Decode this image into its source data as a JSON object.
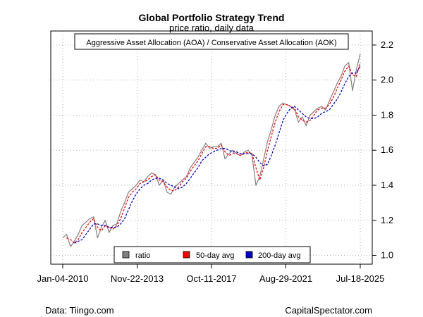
{
  "chart_data": {
    "type": "line",
    "title": "Global Portfolio Strategy Trend",
    "subtitle": "price ratio, daily data",
    "annotation": "Aggressive Asset Allocation (AOA) / Conservative Asset Allocation (AOK)",
    "xlabel": "",
    "ylabel": "",
    "x_ticks": [
      "Jan-04-2010",
      "Nov-22-2013",
      "Oct-11-2017",
      "Aug-29-2021",
      "Jul-18-2025"
    ],
    "x_range": [
      "Jan-04-2010",
      "Jul-18-2025"
    ],
    "y_ticks": [
      1.0,
      1.2,
      1.4,
      1.6,
      1.8,
      2.0,
      2.2
    ],
    "ylim": [
      0.95,
      2.28
    ],
    "y_axis_side": "right",
    "grid": true,
    "legend_position": "bottom-center",
    "x": [
      "Jan-2010",
      "Apr-2010",
      "Jun-2010",
      "Aug-2010",
      "Oct-2010",
      "Dec-2010",
      "Feb-2011",
      "Apr-2011",
      "Jul-2011",
      "Oct-2011",
      "Jan-2012",
      "Apr-2012",
      "Jun-2012",
      "Sep-2012",
      "Dec-2012",
      "Mar-2013",
      "Jun-2013",
      "Sep-2013",
      "Dec-2013",
      "Mar-2014",
      "Jun-2014",
      "Sep-2014",
      "Dec-2014",
      "Mar-2015",
      "Jun-2015",
      "Aug-2015",
      "Oct-2015",
      "Jan-2016",
      "Feb-2016",
      "Apr-2016",
      "Jun-2016",
      "Sep-2016",
      "Dec-2016",
      "Mar-2017",
      "Jun-2017",
      "Sep-2017",
      "Dec-2017",
      "Jan-2018",
      "Feb-2018",
      "Apr-2018",
      "Jul-2018",
      "Sep-2018",
      "Dec-2018",
      "Feb-2019",
      "Apr-2019",
      "Jun-2019",
      "Aug-2019",
      "Oct-2019",
      "Dec-2019",
      "Feb-2020",
      "Mar-2020",
      "Apr-2020",
      "Jun-2020",
      "Sep-2020",
      "Nov-2020",
      "Jan-2021",
      "Mar-2021",
      "Jun-2021",
      "Sep-2021",
      "Dec-2021",
      "Mar-2022",
      "May-2022",
      "Jul-2022",
      "Oct-2022",
      "Dec-2022",
      "Mar-2023",
      "Jun-2023",
      "Sep-2023",
      "Oct-2023",
      "Dec-2023",
      "Mar-2024",
      "Jun-2024",
      "Sep-2024",
      "Dec-2024",
      "Feb-2025",
      "Apr-2025",
      "May-2025",
      "Jul-2025"
    ],
    "series": [
      {
        "name": "ratio",
        "color": "#808080",
        "values": [
          1.1,
          1.12,
          1.05,
          1.08,
          1.12,
          1.17,
          1.19,
          1.21,
          1.22,
          1.1,
          1.16,
          1.2,
          1.13,
          1.17,
          1.18,
          1.25,
          1.3,
          1.36,
          1.38,
          1.4,
          1.43,
          1.42,
          1.45,
          1.47,
          1.46,
          1.4,
          1.43,
          1.36,
          1.35,
          1.39,
          1.41,
          1.43,
          1.45,
          1.5,
          1.53,
          1.56,
          1.6,
          1.64,
          1.61,
          1.62,
          1.62,
          1.64,
          1.55,
          1.58,
          1.6,
          1.58,
          1.57,
          1.59,
          1.6,
          1.57,
          1.4,
          1.45,
          1.55,
          1.65,
          1.72,
          1.8,
          1.85,
          1.87,
          1.86,
          1.85,
          1.83,
          1.76,
          1.79,
          1.74,
          1.8,
          1.82,
          1.84,
          1.85,
          1.83,
          1.88,
          1.93,
          1.98,
          2.02,
          2.08,
          2.1,
          1.94,
          2.06,
          2.15
        ]
      },
      {
        "name": "50-day avg",
        "color": "#ff0000",
        "values": [
          null,
          1.1,
          1.09,
          1.07,
          1.09,
          1.13,
          1.16,
          1.19,
          1.21,
          1.16,
          1.14,
          1.17,
          1.16,
          1.15,
          1.17,
          1.21,
          1.27,
          1.33,
          1.36,
          1.38,
          1.41,
          1.42,
          1.43,
          1.45,
          1.46,
          1.43,
          1.42,
          1.39,
          1.37,
          1.37,
          1.39,
          1.42,
          1.44,
          1.48,
          1.51,
          1.54,
          1.58,
          1.62,
          1.62,
          1.61,
          1.61,
          1.63,
          1.59,
          1.57,
          1.58,
          1.58,
          1.57,
          1.58,
          1.59,
          1.58,
          1.5,
          1.43,
          1.5,
          1.6,
          1.68,
          1.76,
          1.82,
          1.86,
          1.86,
          1.85,
          1.84,
          1.79,
          1.77,
          1.76,
          1.77,
          1.8,
          1.83,
          1.84,
          1.84,
          1.86,
          1.9,
          1.95,
          2.0,
          2.05,
          2.08,
          2.03,
          2.02,
          2.1
        ]
      },
      {
        "name": "200-day avg",
        "color": "#0000cc",
        "values": [
          null,
          null,
          null,
          1.07,
          1.08,
          1.09,
          1.12,
          1.15,
          1.18,
          1.18,
          1.17,
          1.17,
          1.16,
          1.16,
          1.16,
          1.18,
          1.21,
          1.26,
          1.31,
          1.35,
          1.38,
          1.4,
          1.41,
          1.43,
          1.44,
          1.44,
          1.43,
          1.41,
          1.4,
          1.39,
          1.38,
          1.39,
          1.41,
          1.44,
          1.47,
          1.5,
          1.54,
          1.56,
          1.58,
          1.59,
          1.6,
          1.61,
          1.61,
          1.6,
          1.59,
          1.59,
          1.58,
          1.58,
          1.58,
          1.58,
          1.56,
          1.53,
          1.51,
          1.52,
          1.57,
          1.63,
          1.7,
          1.77,
          1.81,
          1.84,
          1.85,
          1.83,
          1.81,
          1.79,
          1.78,
          1.78,
          1.79,
          1.81,
          1.82,
          1.83,
          1.86,
          1.89,
          1.93,
          1.98,
          2.02,
          2.04,
          2.04,
          2.08
        ]
      }
    ]
  },
  "footer": {
    "source": "Data: Tiingo.com",
    "credit": "CapitalSpectator.com"
  }
}
